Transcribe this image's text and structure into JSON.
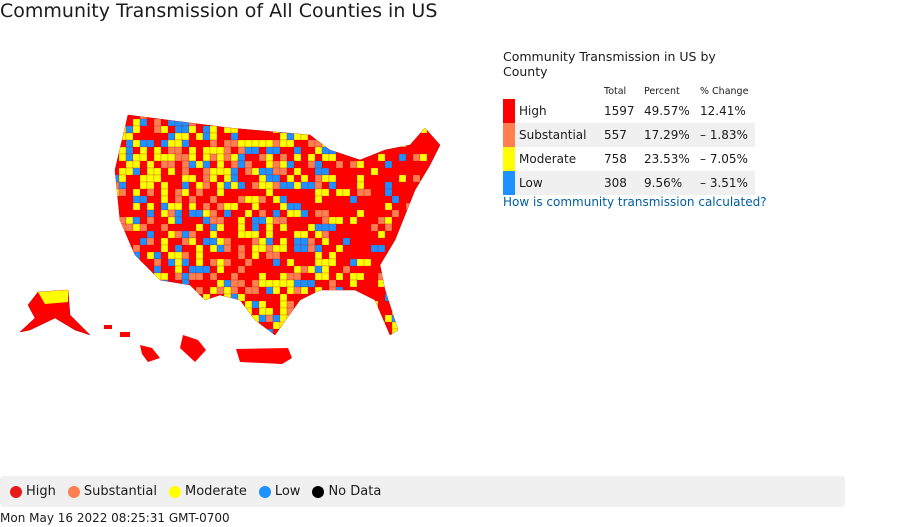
{
  "title": "Community Transmission of All Counties in US",
  "table": {
    "title": "Community Transmission in US by County",
    "headers": [
      "Total",
      "Percent",
      "% Change"
    ],
    "rows": [
      {
        "color": "#ff0000",
        "level": "High",
        "total": 1597,
        "percent": "49.57%",
        "change": "12.41%"
      },
      {
        "color": "#ff7f50",
        "level": "Substantial",
        "total": 557,
        "percent": "17.29%",
        "change": "– 1.83%"
      },
      {
        "color": "#ffff00",
        "level": "Moderate",
        "total": 758,
        "percent": "23.53%",
        "change": "– 7.05%"
      },
      {
        "color": "#1e90ff",
        "level": "Low",
        "total": 308,
        "percent": "9.56%",
        "change": "– 3.51%"
      }
    ]
  },
  "link": "How is community transmission calculated?",
  "legend": [
    {
      "label": "High",
      "color": "#e8191a"
    },
    {
      "label": "Substantial",
      "color": "#ff7f50"
    },
    {
      "label": "Moderate",
      "color": "#ffff00"
    },
    {
      "label": "Low",
      "color": "#1e90ff"
    },
    {
      "label": "No Data",
      "color": "#000000"
    }
  ],
  "timestamp": "Mon May 16 2022 08:25:31 GMT-0700"
}
